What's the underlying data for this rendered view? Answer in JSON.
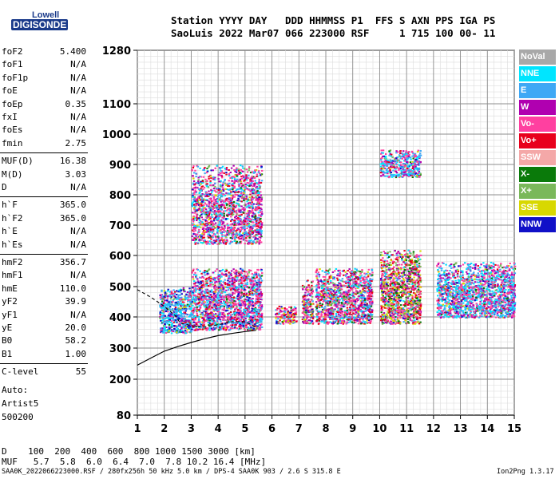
{
  "logo": {
    "top": "Lowell",
    "bottom": "DIGISONDE"
  },
  "header": {
    "line1": "Station YYYY DAY   DDD HHMMSS P1  FFS S AXN PPS IGA PS",
    "line2": "SaoLuis 2022 Mar07 066 223000 RSF     1 715 100 00- 11"
  },
  "params": [
    {
      "name": "foF2",
      "value": "5.400"
    },
    {
      "name": "foF1",
      "value": "N/A"
    },
    {
      "name": "foF1p",
      "value": "N/A"
    },
    {
      "name": "foE",
      "value": "N/A"
    },
    {
      "name": "foEp",
      "value": "0.35"
    },
    {
      "name": "fxI",
      "value": "N/A"
    },
    {
      "name": "foEs",
      "value": "N/A"
    },
    {
      "name": "fmin",
      "value": "2.75"
    },
    {
      "name": "MUF(D)",
      "value": "16.38"
    },
    {
      "name": "M(D)",
      "value": "3.03"
    },
    {
      "name": "D",
      "value": "N/A"
    },
    {
      "name": "h`F",
      "value": "365.0"
    },
    {
      "name": "h`F2",
      "value": "365.0"
    },
    {
      "name": "h`E",
      "value": "N/A"
    },
    {
      "name": "h`Es",
      "value": "N/A"
    },
    {
      "name": "hmF2",
      "value": "356.7"
    },
    {
      "name": "hmF1",
      "value": "N/A"
    },
    {
      "name": "hmE",
      "value": "110.0"
    },
    {
      "name": "yF2",
      "value": "39.9"
    },
    {
      "name": "yF1",
      "value": "N/A"
    },
    {
      "name": "yE",
      "value": "20.0"
    },
    {
      "name": "B0",
      "value": "58.2"
    },
    {
      "name": "B1",
      "value": "1.00"
    },
    {
      "name": "C-level",
      "value": "55"
    }
  ],
  "auto": {
    "line1": "Auto:",
    "line2": "Artist5",
    "line3": "500200"
  },
  "legend": [
    {
      "label": "NoVal",
      "color": "#a8a8a8"
    },
    {
      "label": "NNE",
      "color": "#00e5ff"
    },
    {
      "label": "E",
      "color": "#3ea8f5"
    },
    {
      "label": "W",
      "color": "#b000b0"
    },
    {
      "label": "Vo-",
      "color": "#ff40a0"
    },
    {
      "label": "Vo+",
      "color": "#e8001c"
    },
    {
      "label": "SSW",
      "color": "#f4a8a8"
    },
    {
      "label": "X-",
      "color": "#0a7a0a"
    },
    {
      "label": "X+",
      "color": "#7ab85a"
    },
    {
      "label": "SSE",
      "color": "#d8d800"
    },
    {
      "label": "NNW",
      "color": "#1010c8"
    }
  ],
  "bottom": {
    "d_line": "D    100  200  400  600  800 1000 1500 3000 [km]",
    "muf_line": "MUF   5.7  5.8  6.0  6.4  7.0  7.8 10.2 16.4 [MHz]"
  },
  "footer": {
    "left": "SAA0K_2022066223000.RSF / 280fx256h 50 kHz 5.0 km / DPS-4 SAA0K 903 / 2.6 S 315.8 E",
    "right": "Ion2Png 1.3.17"
  },
  "chart_data": {
    "type": "scatter",
    "title": "",
    "xlabel": "",
    "ylabel": "",
    "xlim": [
      1,
      15
    ],
    "ylim": [
      80,
      1280
    ],
    "x_ticks": [
      1,
      2,
      3,
      4,
      5,
      6,
      7,
      8,
      9,
      10,
      11,
      12,
      13,
      14,
      15
    ],
    "y_ticks": [
      80,
      200,
      300,
      400,
      500,
      600,
      700,
      800,
      900,
      1000,
      1100,
      1280
    ],
    "grid": true,
    "legend_position": "right",
    "clusters": [
      {
        "x": [
          1.8,
          3.0
        ],
        "y": [
          350,
          500
        ],
        "weights": [
          4,
          5,
          2,
          1,
          1
        ]
      },
      {
        "x": [
          3.0,
          5.6
        ],
        "y": [
          360,
          560
        ],
        "weights": [
          2,
          3,
          4,
          3,
          1
        ]
      },
      {
        "x": [
          6.1,
          6.9
        ],
        "y": [
          380,
          440
        ],
        "weights": [
          1,
          1,
          2,
          4,
          2
        ]
      },
      {
        "x": [
          7.1,
          7.5
        ],
        "y": [
          380,
          530
        ],
        "weights": [
          1,
          1,
          3,
          4,
          3
        ]
      },
      {
        "x": [
          7.6,
          9.7
        ],
        "y": [
          380,
          560
        ],
        "weights": [
          1,
          3,
          4,
          3,
          2
        ]
      },
      {
        "x": [
          10.0,
          11.5
        ],
        "y": [
          380,
          620
        ],
        "weights": [
          1,
          1,
          2,
          4,
          5
        ]
      },
      {
        "x": [
          12.1,
          15.0
        ],
        "y": [
          400,
          580
        ],
        "weights": [
          1,
          5,
          4,
          1,
          1
        ]
      },
      {
        "x": [
          3.0,
          5.6
        ],
        "y": [
          640,
          900
        ],
        "weights": [
          1,
          2,
          3,
          2,
          1
        ]
      },
      {
        "x": [
          10.0,
          11.5
        ],
        "y": [
          860,
          950
        ],
        "weights": [
          1,
          4,
          3,
          1,
          1
        ]
      }
    ],
    "trace_solid": {
      "x": [
        1.0,
        1.5,
        2.0,
        2.5,
        3.0,
        3.5,
        4.0,
        4.5,
        5.0,
        5.4
      ],
      "y": [
        245,
        268,
        290,
        305,
        318,
        330,
        340,
        347,
        353,
        357
      ]
    },
    "trace_dashed": {
      "x": [
        1.0,
        1.5,
        2.0,
        2.4,
        2.6,
        3.0,
        3.5,
        4.0,
        4.5,
        5.0,
        5.4
      ],
      "y": [
        490,
        465,
        435,
        405,
        380,
        372,
        368,
        375,
        385,
        385,
        368
      ]
    }
  }
}
